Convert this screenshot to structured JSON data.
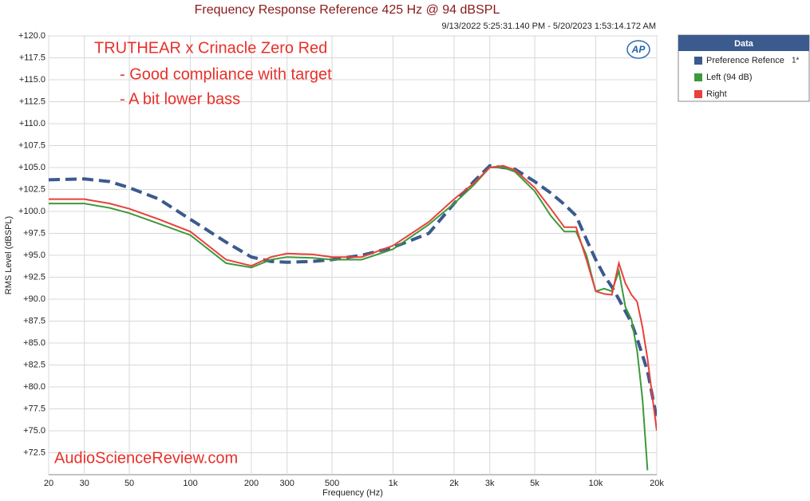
{
  "chart_data": {
    "type": "line",
    "title": "Frequency Response Reference 425 Hz @ 94 dBSPL",
    "subtitle": "9/13/2022 5:25:31.140 PM - 5/20/2023 1:53:14.172 AM",
    "x_label": "Frequency (Hz)",
    "y_label": "RMS Level (dBSPL)",
    "annotations": [
      "TRUTHEAR x Crinacle Zero Red",
      "- Good compliance with target",
      "- A bit lower bass",
      "AudioScienceReview.com"
    ],
    "logo": "AP",
    "legend_title": "Data",
    "legend_note": "1*",
    "legend_position": "right",
    "log_x": true,
    "grid": true,
    "x": [
      20,
      30,
      40,
      50,
      70,
      100,
      150,
      200,
      250,
      300,
      400,
      500,
      700,
      1000,
      1500,
      2000,
      2500,
      3000,
      3500,
      4000,
      5000,
      6000,
      7000,
      8000,
      9000,
      10000,
      11000,
      12000,
      13000,
      14000,
      15000,
      16000,
      17000,
      18000,
      20000
    ],
    "series": [
      {
        "name": "Preference Refence",
        "color": "#3b5a8e",
        "dashed": true,
        "values": [
          103.6,
          103.7,
          103.4,
          102.7,
          101.4,
          99.1,
          96.5,
          94.8,
          94.3,
          94.2,
          94.3,
          94.5,
          95.0,
          95.9,
          97.5,
          100.9,
          103.4,
          105.2,
          105.0,
          104.8,
          103.4,
          102.1,
          100.8,
          99.5,
          96.8,
          94.5,
          92.7,
          91.4,
          90.0,
          88.6,
          87.3,
          85.5,
          83.6,
          81.8,
          76.4
        ]
      },
      {
        "name": "Left (94 dB)",
        "color": "#3c9a3c",
        "dashed": false,
        "values": [
          100.9,
          100.9,
          100.4,
          99.8,
          98.6,
          97.3,
          94.1,
          93.6,
          94.5,
          94.8,
          94.7,
          94.5,
          94.5,
          95.7,
          98.5,
          100.9,
          103.0,
          105.0,
          105.0,
          104.5,
          102.3,
          99.5,
          97.7,
          97.7,
          95.0,
          90.9,
          91.2,
          90.9,
          93.2,
          89.1,
          87.7,
          84.1,
          78.6,
          70.5,
          null
        ]
      },
      {
        "name": "Right",
        "color": "#e8413a",
        "dashed": false,
        "values": [
          101.4,
          101.4,
          100.9,
          100.3,
          99.1,
          97.7,
          94.5,
          93.8,
          94.8,
          95.2,
          95.1,
          94.8,
          94.8,
          96.1,
          98.8,
          101.4,
          103.2,
          105.0,
          105.2,
          104.7,
          102.7,
          100.3,
          98.2,
          98.2,
          94.5,
          90.9,
          90.6,
          90.5,
          94.1,
          91.8,
          90.5,
          89.7,
          86.8,
          83.2,
          75.0
        ]
      }
    ],
    "xlim": [
      20,
      20000
    ],
    "xticks": [
      20,
      30,
      50,
      100,
      200,
      300,
      500,
      {
        "value": 1000,
        "label": "1k"
      },
      {
        "value": 2000,
        "label": "2k"
      },
      {
        "value": 3000,
        "label": "3k"
      },
      {
        "value": 5000,
        "label": "5k"
      },
      {
        "value": 10000,
        "label": "10k"
      },
      {
        "value": 20000,
        "label": "20k"
      }
    ],
    "ylim": [
      70,
      120
    ],
    "yticks": [
      {
        "value": 72.5,
        "label": "+72.5"
      },
      {
        "value": 75,
        "label": "+75.0"
      },
      {
        "value": 77.5,
        "label": "+77.5"
      },
      {
        "value": 80,
        "label": "+80.0"
      },
      {
        "value": 82.5,
        "label": "+82.5"
      },
      {
        "value": 85,
        "label": "+85.0"
      },
      {
        "value": 87.5,
        "label": "+87.5"
      },
      {
        "value": 90,
        "label": "+90.0"
      },
      {
        "value": 92.5,
        "label": "+92.5"
      },
      {
        "value": 95,
        "label": "+95.0"
      },
      {
        "value": 97.5,
        "label": "+97.5"
      },
      {
        "value": 100,
        "label": "+100.0"
      },
      {
        "value": 102.5,
        "label": "+102.5"
      },
      {
        "value": 105,
        "label": "+105.0"
      },
      {
        "value": 107.5,
        "label": "+107.5"
      },
      {
        "value": 110,
        "label": "+110.0"
      },
      {
        "value": 112.5,
        "label": "+112.5"
      },
      {
        "value": 115,
        "label": "+115.0"
      },
      {
        "value": 117.5,
        "label": "+117.5"
      },
      {
        "value": 120,
        "label": "+120.0"
      }
    ]
  }
}
